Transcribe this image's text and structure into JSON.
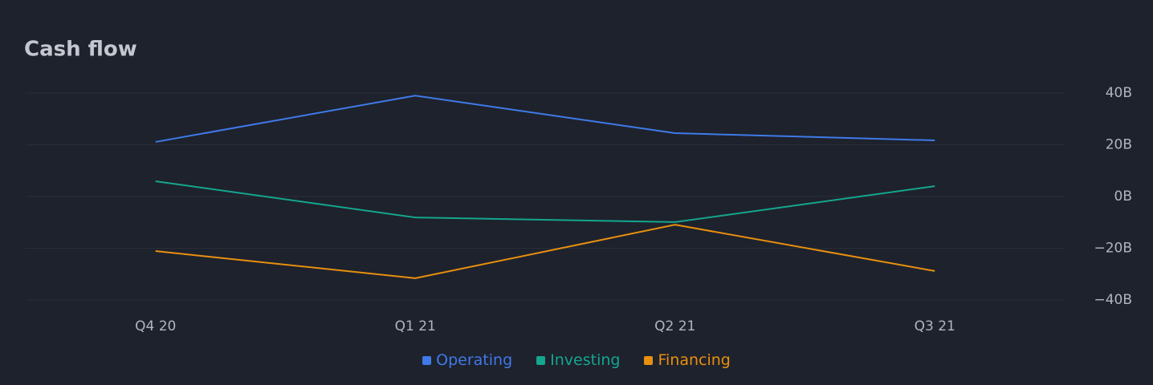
{
  "chart_data": {
    "type": "line",
    "title": "Cash flow",
    "categories": [
      "Q4 20",
      "Q1 21",
      "Q2 21",
      "Q3 21"
    ],
    "series": [
      {
        "name": "Operating",
        "color": "#3f7ae8",
        "values": [
          21.1,
          39,
          24.5,
          21.7
        ]
      },
      {
        "name": "Investing",
        "color": "#14a68e",
        "values": [
          5.9,
          -8.1,
          -9.9,
          4.0
        ]
      },
      {
        "name": "Financing",
        "color": "#e8900e",
        "values": [
          -21.1,
          -31.6,
          -10.9,
          -28.8
        ]
      }
    ],
    "ylim": [
      -40,
      40
    ],
    "yticks": [
      {
        "value": 40,
        "label": "40B"
      },
      {
        "value": 20,
        "label": "20B"
      },
      {
        "value": 0,
        "label": "0B"
      },
      {
        "value": -20,
        "label": "−20B"
      },
      {
        "value": -40,
        "label": "−40B"
      }
    ],
    "grid": true,
    "legend": "bottom"
  }
}
